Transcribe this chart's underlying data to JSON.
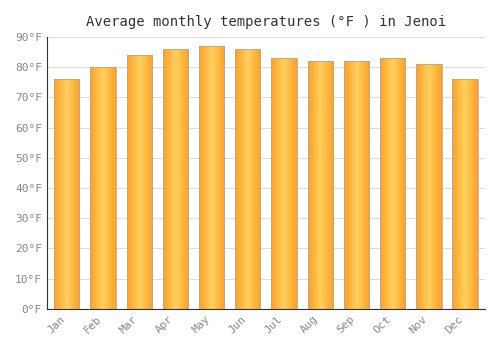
{
  "title": "Average monthly temperatures (°F ) in Jenoi",
  "months": [
    "Jan",
    "Feb",
    "Mar",
    "Apr",
    "May",
    "Jun",
    "Jul",
    "Aug",
    "Sep",
    "Oct",
    "Nov",
    "Dec"
  ],
  "values": [
    76,
    80,
    84,
    86,
    87,
    86,
    83,
    82,
    82,
    83,
    81,
    76
  ],
  "bar_color_edge": "#FFA020",
  "bar_color_center": "#FFD060",
  "bar_outline_color": "#AAAAAA",
  "ylim": [
    0,
    90
  ],
  "yticks": [
    0,
    10,
    20,
    30,
    40,
    50,
    60,
    70,
    80,
    90
  ],
  "background_color": "#ffffff",
  "plot_bg_color": "#ffffff",
  "grid_color": "#dddddd",
  "title_fontsize": 10,
  "tick_fontsize": 8,
  "bar_width": 0.7
}
